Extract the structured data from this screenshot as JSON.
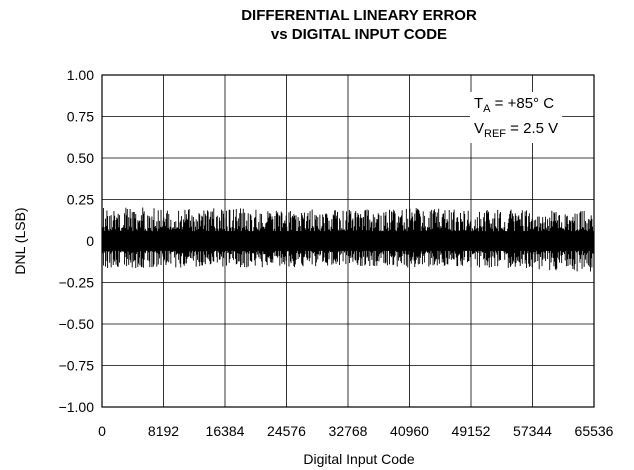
{
  "chart_data": {
    "type": "line",
    "title_line1": "DIFFERENTIAL LINEARY ERROR",
    "title_line2": "vs DIGITAL INPUT CODE",
    "xlabel": "Digital Input Code",
    "ylabel": "DNL (LSB)",
    "xlim": [
      0,
      65536
    ],
    "ylim": [
      -1.0,
      1.0
    ],
    "xticks": [
      0,
      8192,
      16384,
      24576,
      32768,
      40960,
      49152,
      57344,
      65536
    ],
    "xtick_labels": [
      "0",
      "8192",
      "16384",
      "24576",
      "32768",
      "40960",
      "49152",
      "57344",
      "65536"
    ],
    "yticks": [
      1.0,
      0.75,
      0.5,
      0.25,
      0,
      -0.25,
      -0.5,
      -0.75,
      -1.0
    ],
    "ytick_labels": [
      "1.00",
      "0.75",
      "0.50",
      "0.25",
      "0",
      "−0.25",
      "−0.50",
      "−0.75",
      "−1.00"
    ],
    "grid": true,
    "series": [
      {
        "color": "#000000",
        "approx_range": [
          -0.2,
          0.22
        ],
        "envelope": {
          "x": [
            0,
            8192,
            16384,
            24576,
            32768,
            40960,
            49152,
            57344,
            65536
          ],
          "upper": [
            0.21,
            0.2,
            0.2,
            0.19,
            0.19,
            0.2,
            0.19,
            0.19,
            0.18
          ],
          "lower": [
            -0.17,
            -0.16,
            -0.16,
            -0.16,
            -0.15,
            -0.16,
            -0.16,
            -0.17,
            -0.19
          ],
          "dense_upper": [
            0.05,
            0.05,
            0.05,
            0.05,
            0.05,
            0.05,
            0.05,
            0.05,
            0.05
          ],
          "dense_lower": [
            -0.05,
            -0.05,
            -0.05,
            -0.05,
            -0.05,
            -0.05,
            -0.05,
            -0.05,
            -0.05
          ]
        }
      }
    ],
    "annotation": {
      "line1_main": "T",
      "line1_sub": "A",
      "line1_rest": " = +85° C",
      "line2_main": "V",
      "line2_sub": "REF",
      "line2_rest": " = 2.5 V"
    }
  }
}
